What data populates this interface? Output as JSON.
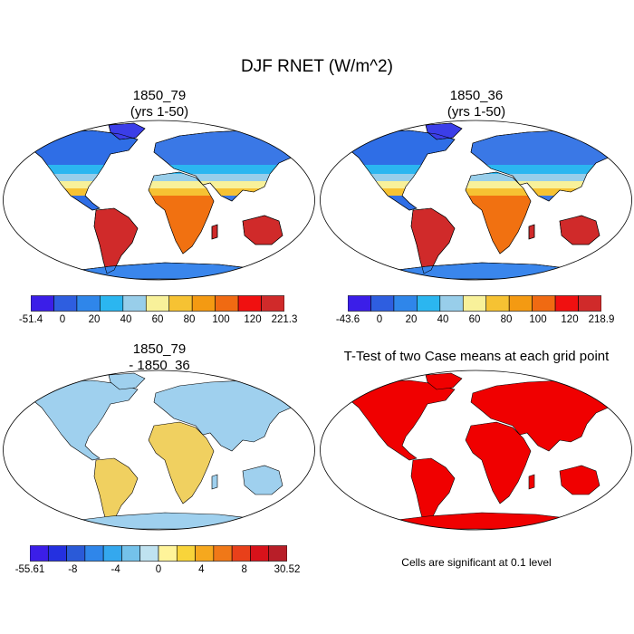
{
  "title": "DJF RNET (W/m^2)",
  "panels": [
    {
      "id": "p1",
      "title_line1": "1850_79",
      "title_line2": "(yrs 1-50)",
      "colorbar": {
        "colors": [
          "#3b1ee8",
          "#2e5ee0",
          "#2f86ea",
          "#2bb6f0",
          "#98ceea",
          "#f8f19a",
          "#f6c233",
          "#f49a12",
          "#f06a12",
          "#f01010",
          "#d02a2a"
        ],
        "labels": [
          "-51.4",
          "0",
          "20",
          "40",
          "60",
          "80",
          "100",
          "120",
          "221.3"
        ]
      }
    },
    {
      "id": "p2",
      "title_line1": "1850_36",
      "title_line2": "(yrs 1-50)",
      "colorbar": {
        "colors": [
          "#3b1ee8",
          "#2e5ee0",
          "#2f86ea",
          "#2bb6f0",
          "#98ceea",
          "#f8f19a",
          "#f6c233",
          "#f49a12",
          "#f06a12",
          "#f01010",
          "#d02a2a"
        ],
        "labels": [
          "-43.6",
          "0",
          "20",
          "40",
          "60",
          "80",
          "100",
          "120",
          "218.9"
        ]
      }
    },
    {
      "id": "p3",
      "title_line1": "1850_79",
      "title_line2": "- 1850_36",
      "colorbar": {
        "colors": [
          "#3b1ee8",
          "#2430e0",
          "#2a5ad8",
          "#2f86ea",
          "#34a8ee",
          "#74c2ea",
          "#bfe2f0",
          "#fff49a",
          "#f8d43a",
          "#f6a81e",
          "#f07818",
          "#e8401a",
          "#d8121a",
          "#b81e28"
        ],
        "labels": [
          "-55.61",
          "-8",
          "-4",
          "0",
          "4",
          "8",
          "30.52"
        ]
      }
    },
    {
      "id": "p4",
      "title_line1": "T-Test of two Case means at each grid point",
      "note": "Cells are significant at 0.1 level"
    }
  ],
  "chart_data": [
    {
      "type": "heatmap",
      "title": "1850_79 (yrs 1-50)",
      "description_values": "DJF net radiation, global map",
      "colorbar_min": -51.4,
      "colorbar_max": 221.3,
      "colorbar_ticks": [
        0,
        20,
        40,
        60,
        80,
        100,
        120
      ],
      "projection": "robinson"
    },
    {
      "type": "heatmap",
      "title": "1850_36 (yrs 1-50)",
      "colorbar_min": -43.6,
      "colorbar_max": 218.9,
      "colorbar_ticks": [
        0,
        20,
        40,
        60,
        80,
        100,
        120
      ],
      "projection": "robinson"
    },
    {
      "type": "heatmap",
      "title": "1850_79 - 1850_36",
      "colorbar_min": -55.61,
      "colorbar_max": 30.52,
      "colorbar_ticks": [
        -8,
        -4,
        0,
        4,
        8
      ],
      "projection": "robinson"
    },
    {
      "type": "heatmap",
      "title": "T-Test of two Case means at each grid point",
      "significance_level": 0.1,
      "projection": "robinson"
    }
  ]
}
